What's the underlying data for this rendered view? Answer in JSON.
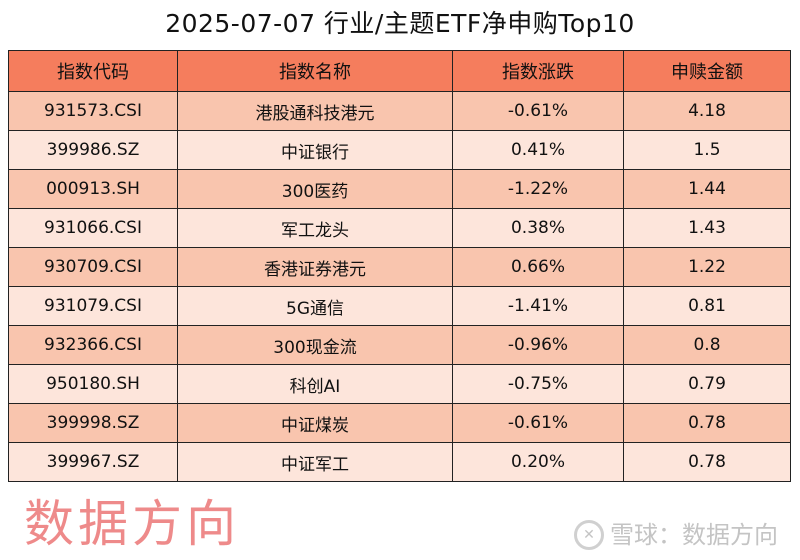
{
  "title": "2025-07-07 行业/主题ETF净申购Top10",
  "columns": [
    "指数代码",
    "指数名称",
    "指数涨跌",
    "申赎金额"
  ],
  "rows": [
    [
      "931573.CSI",
      "港股通科技港元",
      "-0.61%",
      "4.18"
    ],
    [
      "399986.SZ",
      "中证银行",
      "0.41%",
      "1.5"
    ],
    [
      "000913.SH",
      "300医药",
      "-1.22%",
      "1.44"
    ],
    [
      "931066.CSI",
      "军工龙头",
      "0.38%",
      "1.43"
    ],
    [
      "930709.CSI",
      "香港证券港元",
      "0.66%",
      "1.22"
    ],
    [
      "931079.CSI",
      "5G通信",
      "-1.41%",
      "0.81"
    ],
    [
      "932366.CSI",
      "300现金流",
      "-0.96%",
      "0.8"
    ],
    [
      "950180.SH",
      "科创AI",
      "-0.75%",
      "0.79"
    ],
    [
      "399998.SZ",
      "中证煤炭",
      "-0.61%",
      "0.78"
    ],
    [
      "399967.SZ",
      "中证军工",
      "0.20%",
      "0.78"
    ]
  ],
  "watermark": "数据方向",
  "footer": {
    "logo_icon": "snowball-logo-icon",
    "text": "雪球：数据方向"
  },
  "colors": {
    "header": "#F57D5D",
    "row_odd": "#F9C5AE",
    "row_even": "#FDE5DB",
    "watermark": "#E63C3C"
  }
}
